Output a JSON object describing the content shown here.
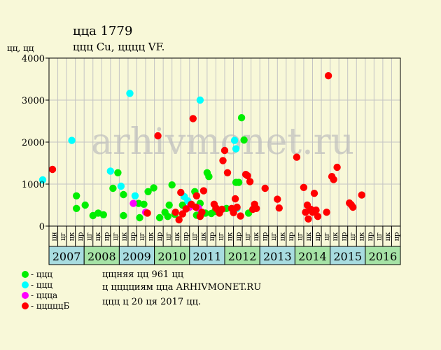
{
  "title": "ццa 1779",
  "subtitle": "ццц Cu, цццц VF.",
  "y_unit": "цц, цц",
  "watermark": "arhivmonet.ru",
  "info": [
    "цщняя цц 961 цц",
    "ц цццциям цца ARHIVMONET.RU",
    "ццц ц 20 ця 2017 цц."
  ],
  "colors": {
    "background": "#f8f8d8",
    "plot_bg": "#f8f8d8",
    "grid": "#c4c4c4",
    "year_even": "#a8dce0",
    "year_odd": "#a6e3a6"
  },
  "legend": [
    {
      "label": "- ццц",
      "color": "#00ee00"
    },
    {
      "label": "- ццц",
      "color": "#00ffff"
    },
    {
      "label": "- цццa",
      "color": "#ff00ff"
    },
    {
      "label": "- цццццБ",
      "color": "#ff0000"
    }
  ],
  "chart_data": {
    "type": "scatter",
    "ylim": [
      0,
      4000
    ],
    "yticks": [
      0,
      1000,
      2000,
      3000,
      4000
    ],
    "xlim": [
      2007.0,
      2017.0
    ],
    "period_labels": [
      "цн",
      "цг",
      "цк",
      "цр",
      "цг",
      "цк",
      "цр",
      "цг",
      "цк",
      "цр",
      "цг",
      "цк",
      "цр",
      "цг",
      "цк",
      "цр",
      "цг",
      "цк",
      "цр",
      "цг",
      "цк",
      "цр",
      "цг",
      "цк",
      "цр",
      "цг",
      "цк",
      "цр",
      "цг",
      "цк",
      "цр",
      "цг",
      "цк",
      "цр",
      "цг",
      "цк",
      "цр",
      "цг",
      "цк",
      "цр"
    ],
    "years": [
      "2007",
      "2008",
      "2009",
      "2010",
      "2011",
      "2012",
      "2013",
      "2014",
      "2015",
      "2016"
    ],
    "series": [
      {
        "name": "- ццц",
        "color": "#00ee00",
        "points": [
          [
            2007.78,
            720
          ],
          [
            2007.78,
            420
          ],
          [
            2008.03,
            500
          ],
          [
            2008.25,
            250
          ],
          [
            2008.4,
            310
          ],
          [
            2008.55,
            270
          ],
          [
            2008.82,
            900
          ],
          [
            2008.96,
            1270
          ],
          [
            2009.12,
            250
          ],
          [
            2009.12,
            750
          ],
          [
            2009.55,
            540
          ],
          [
            2009.58,
            200
          ],
          [
            2009.7,
            520
          ],
          [
            2009.82,
            820
          ],
          [
            2009.98,
            910
          ],
          [
            2010.15,
            200
          ],
          [
            2010.3,
            330
          ],
          [
            2010.38,
            230
          ],
          [
            2010.42,
            500
          ],
          [
            2010.5,
            980
          ],
          [
            2010.58,
            280
          ],
          [
            2010.8,
            500
          ],
          [
            2010.85,
            700
          ],
          [
            2011.15,
            820
          ],
          [
            2011.2,
            260
          ],
          [
            2011.3,
            540
          ],
          [
            2011.35,
            300
          ],
          [
            2011.45,
            310
          ],
          [
            2011.5,
            1270
          ],
          [
            2011.55,
            1180
          ],
          [
            2011.62,
            300
          ],
          [
            2011.72,
            350
          ],
          [
            2012.05,
            420
          ],
          [
            2012.32,
            1040
          ],
          [
            2012.4,
            1040
          ],
          [
            2012.48,
            2580
          ],
          [
            2012.55,
            2050
          ],
          [
            2012.68,
            310
          ]
        ]
      },
      {
        "name": "- ццц",
        "color": "#00ffff",
        "points": [
          [
            2006.82,
            1100
          ],
          [
            2007.65,
            2040
          ],
          [
            2008.75,
            1310
          ],
          [
            2009.05,
            950
          ],
          [
            2009.3,
            3160
          ],
          [
            2009.45,
            720
          ],
          [
            2010.85,
            700
          ],
          [
            2010.95,
            600
          ],
          [
            2011.3,
            3000
          ],
          [
            2012.28,
            2040
          ],
          [
            2012.32,
            1840
          ],
          [
            2012.35,
            420
          ]
        ]
      },
      {
        "name": "- цццa",
        "color": "#ff00ff",
        "points": [
          [
            2009.4,
            540
          ],
          [
            2009.75,
            330
          ],
          [
            2011.0,
            450
          ],
          [
            2011.25,
            430
          ]
        ]
      },
      {
        "name": "- цццццБ",
        "color": "#ff0000",
        "points": [
          [
            2007.1,
            1350
          ],
          [
            2009.8,
            310
          ],
          [
            2010.1,
            2150
          ],
          [
            2010.6,
            330
          ],
          [
            2010.7,
            150
          ],
          [
            2010.75,
            800
          ],
          [
            2010.8,
            290
          ],
          [
            2010.9,
            410
          ],
          [
            2011.05,
            520
          ],
          [
            2011.1,
            2560
          ],
          [
            2011.18,
            450
          ],
          [
            2011.2,
            720
          ],
          [
            2011.3,
            230
          ],
          [
            2011.35,
            330
          ],
          [
            2011.4,
            840
          ],
          [
            2011.7,
            520
          ],
          [
            2011.75,
            430
          ],
          [
            2011.8,
            390
          ],
          [
            2011.85,
            310
          ],
          [
            2011.92,
            400
          ],
          [
            2011.95,
            1560
          ],
          [
            2012.0,
            1800
          ],
          [
            2012.08,
            1270
          ],
          [
            2012.2,
            420
          ],
          [
            2012.25,
            320
          ],
          [
            2012.3,
            650
          ],
          [
            2012.35,
            450
          ],
          [
            2012.45,
            240
          ],
          [
            2012.6,
            1230
          ],
          [
            2012.65,
            1200
          ],
          [
            2012.72,
            1060
          ],
          [
            2012.8,
            400
          ],
          [
            2012.85,
            520
          ],
          [
            2012.9,
            420
          ],
          [
            2013.15,
            900
          ],
          [
            2013.5,
            640
          ],
          [
            2013.55,
            430
          ],
          [
            2014.05,
            1640
          ],
          [
            2014.25,
            920
          ],
          [
            2014.3,
            330
          ],
          [
            2014.35,
            500
          ],
          [
            2014.38,
            170
          ],
          [
            2014.45,
            400
          ],
          [
            2014.5,
            330
          ],
          [
            2014.55,
            780
          ],
          [
            2014.6,
            380
          ],
          [
            2014.65,
            230
          ],
          [
            2014.9,
            330
          ],
          [
            2014.95,
            3580
          ],
          [
            2015.05,
            1180
          ],
          [
            2015.1,
            1110
          ],
          [
            2015.2,
            1400
          ],
          [
            2015.55,
            550
          ],
          [
            2015.6,
            510
          ],
          [
            2015.65,
            450
          ],
          [
            2015.9,
            740
          ]
        ]
      }
    ]
  }
}
